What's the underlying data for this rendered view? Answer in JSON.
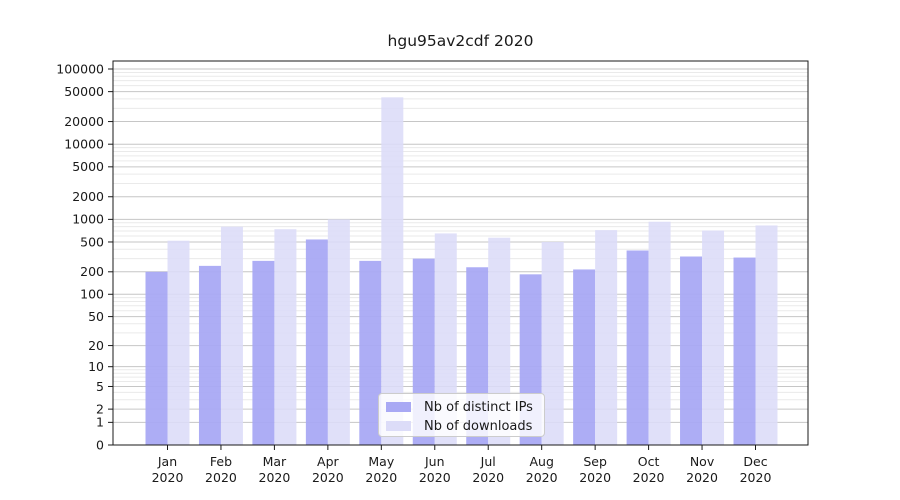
{
  "chart_data": {
    "type": "bar",
    "title": "hgu95av2cdf 2020",
    "categories": [
      "Jan",
      "Feb",
      "Mar",
      "Apr",
      "May",
      "Jun",
      "Jul",
      "Aug",
      "Sep",
      "Oct",
      "Nov",
      "Dec"
    ],
    "category_year": "2020",
    "series": [
      {
        "name": "Nb of distinct IPs",
        "color": "#a9a9f4",
        "values": [
          200,
          240,
          280,
          540,
          280,
          300,
          230,
          185,
          215,
          385,
          320,
          310
        ]
      },
      {
        "name": "Nb of downloads",
        "color": "#dcdcf8",
        "values": [
          520,
          800,
          740,
          1000,
          42000,
          650,
          570,
          500,
          720,
          930,
          710,
          830
        ]
      }
    ],
    "yscale": "log10(value+1)",
    "yticks": [
      0,
      1,
      2,
      5,
      10,
      20,
      50,
      100,
      200,
      500,
      1000,
      2000,
      5000,
      10000,
      20000,
      50000,
      100000
    ],
    "ylim": [
      0,
      128000
    ],
    "xlabel": "",
    "ylabel": "",
    "grid": {
      "major_color": "#c6c6c6",
      "minor_color": "#eaeaea",
      "minor_steps_per_decade": [
        3,
        4,
        6,
        7,
        8,
        9
      ]
    },
    "axis_color": "#1a1a1a",
    "legend_position": "lower center"
  }
}
